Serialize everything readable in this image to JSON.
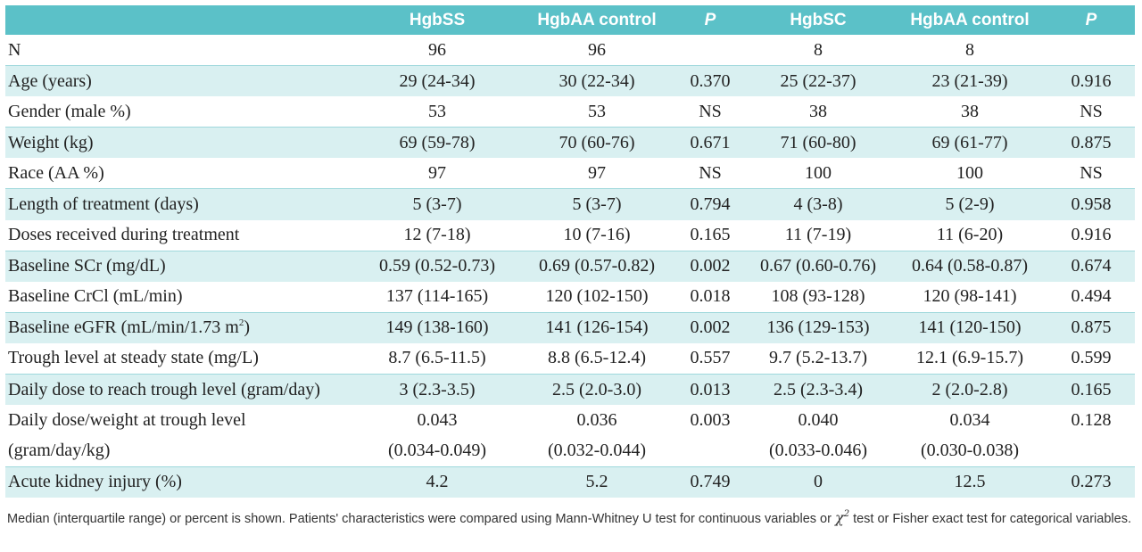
{
  "header": {
    "label": "",
    "cols": [
      "HgbSS",
      "HgbAA control",
      "P",
      "HgbSC",
      "HgbAA control",
      "P"
    ]
  },
  "rows": [
    {
      "label": "N",
      "cells": [
        "96",
        "96",
        "",
        "8",
        "8",
        ""
      ]
    },
    {
      "label": "Age (years)",
      "cells": [
        "29 (24-34)",
        "30 (22-34)",
        "0.370",
        "25 (22-37)",
        "23 (21-39)",
        "0.916"
      ]
    },
    {
      "label": "Gender (male %)",
      "cells": [
        "53",
        "53",
        "NS",
        "38",
        "38",
        "NS"
      ]
    },
    {
      "label": "Weight (kg)",
      "cells": [
        "69 (59-78)",
        "70 (60-76)",
        "0.671",
        "71 (60-80)",
        "69 (61-77)",
        "0.875"
      ]
    },
    {
      "label": "Race (AA %)",
      "cells": [
        "97",
        "97",
        "NS",
        "100",
        "100",
        "NS"
      ]
    },
    {
      "label": "Length of treatment (days)",
      "cells": [
        "5 (3-7)",
        "5 (3-7)",
        "0.794",
        "4 (3-8)",
        "5 (2-9)",
        "0.958"
      ]
    },
    {
      "label": "Doses received during treatment",
      "cells": [
        "12 (7-18)",
        "10 (7-16)",
        "0.165",
        "11 (7-19)",
        "11 (6-20)",
        "0.916"
      ]
    },
    {
      "label": "Baseline SCr (mg/dL)",
      "cells": [
        "0.59 (0.52-0.73)",
        "0.69 (0.57-0.82)",
        "0.002",
        "0.67 (0.60-0.76)",
        "0.64 (0.58-0.87)",
        "0.674"
      ]
    },
    {
      "label": "Baseline CrCl (mL/min)",
      "cells": [
        "137 (114-165)",
        "120 (102-150)",
        "0.018",
        "108 (93-128)",
        "120 (98-141)",
        "0.494"
      ]
    },
    {
      "label_main": "Baseline eGFR (mL/min/1.73 m",
      "label_sup": "2",
      "label_end": ")",
      "cells": [
        "149 (138-160)",
        "141 (126-154)",
        "0.002",
        "136 (129-153)",
        "141 (120-150)",
        "0.875"
      ]
    },
    {
      "label": "Trough level at steady state (mg/L)",
      "cells": [
        "8.7 (6.5-11.5)",
        "8.8 (6.5-12.4)",
        "0.557",
        "9.7 (5.2-13.7)",
        "12.1 (6.9-15.7)",
        "0.599"
      ]
    },
    {
      "label": "Daily dose to reach trough level (gram/day)",
      "cells": [
        "3 (2.3-3.5)",
        "2.5 (2.0-3.0)",
        "0.013",
        "2.5 (2.3-3.4)",
        "2 (2.0-2.8)",
        "0.165"
      ]
    },
    {
      "label_1": "Daily dose/weight at trough level",
      "label_2": "(gram/day/kg)",
      "cells_1": [
        "0.043",
        "0.036",
        "0.003",
        "0.040",
        "0.034",
        "0.128"
      ],
      "cells_2": [
        "(0.034-0.049)",
        "(0.032-0.044)",
        "",
        "(0.033-0.046)",
        "(0.030-0.038)",
        ""
      ]
    },
    {
      "label": "Acute kidney injury (%)",
      "cells": [
        "4.2",
        "5.2",
        "0.749",
        "0",
        "12.5",
        "0.273"
      ]
    }
  ],
  "footnote": {
    "part1": "Median (interquartile range) or percent is shown. Patients' characteristics were compared using Mann-Whitney U test for continuous variables or ",
    "chi": "χ",
    "chi_sup": "2",
    "part2": " test or Fisher exact test for categorical variables."
  }
}
